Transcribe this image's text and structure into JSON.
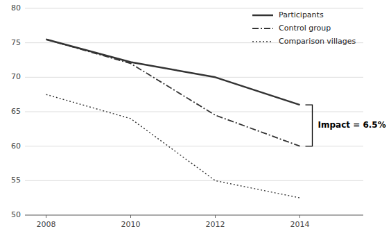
{
  "chart_data": {
    "type": "line",
    "x": [
      2008,
      2010,
      2012,
      2014
    ],
    "series": [
      {
        "name": "Participants",
        "color": "#333333",
        "line_style": "solid",
        "values": [
          75.5,
          72.2,
          70.0,
          66.0
        ]
      },
      {
        "name": "Control group",
        "color": "#333333",
        "line_style": "dashdot",
        "values": [
          75.5,
          72.0,
          64.5,
          60.0
        ]
      },
      {
        "name": "Comparison villages",
        "color": "#333333",
        "line_style": "dotted",
        "values": [
          67.5,
          64.0,
          55.0,
          52.5
        ]
      }
    ],
    "xlim": [
      2007.5,
      2015.5
    ],
    "xticks": [
      2008,
      2010,
      2012,
      2014
    ],
    "ylim": [
      50,
      80
    ],
    "yticks": [
      50,
      55,
      60,
      65,
      70,
      75,
      80
    ],
    "grid": true,
    "legend": "upper right",
    "annotation": "Impact = 6.5%"
  }
}
